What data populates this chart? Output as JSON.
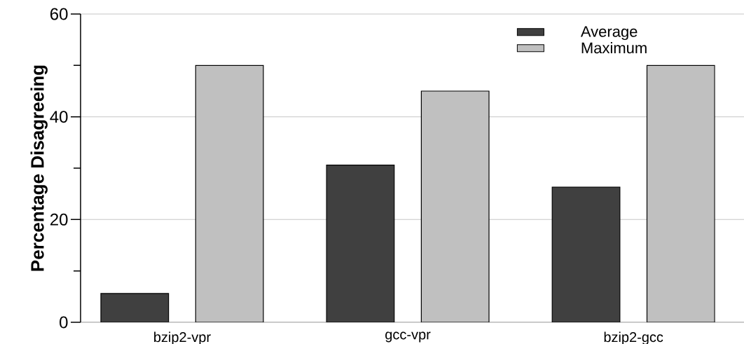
{
  "chart_data": {
    "type": "bar",
    "ylabel": "Percentage Disagreeing",
    "categories": [
      "bzip2-vpr",
      "gcc-vpr",
      "bzip2-gcc"
    ],
    "series": [
      {
        "name": "Average",
        "color": "#404040",
        "values": [
          5.6,
          30.6,
          26.3
        ]
      },
      {
        "name": "Maximum",
        "color": "#c0c0c0",
        "values": [
          50,
          45,
          50
        ]
      }
    ],
    "ylim": [
      0,
      60
    ],
    "yticks": [
      0,
      {
        "value": 10,
        "label": null
      },
      20,
      {
        "value": 30,
        "label": null
      },
      40,
      {
        "value": 50,
        "label": null
      },
      60
    ],
    "grid": "y",
    "legend": "top right"
  }
}
